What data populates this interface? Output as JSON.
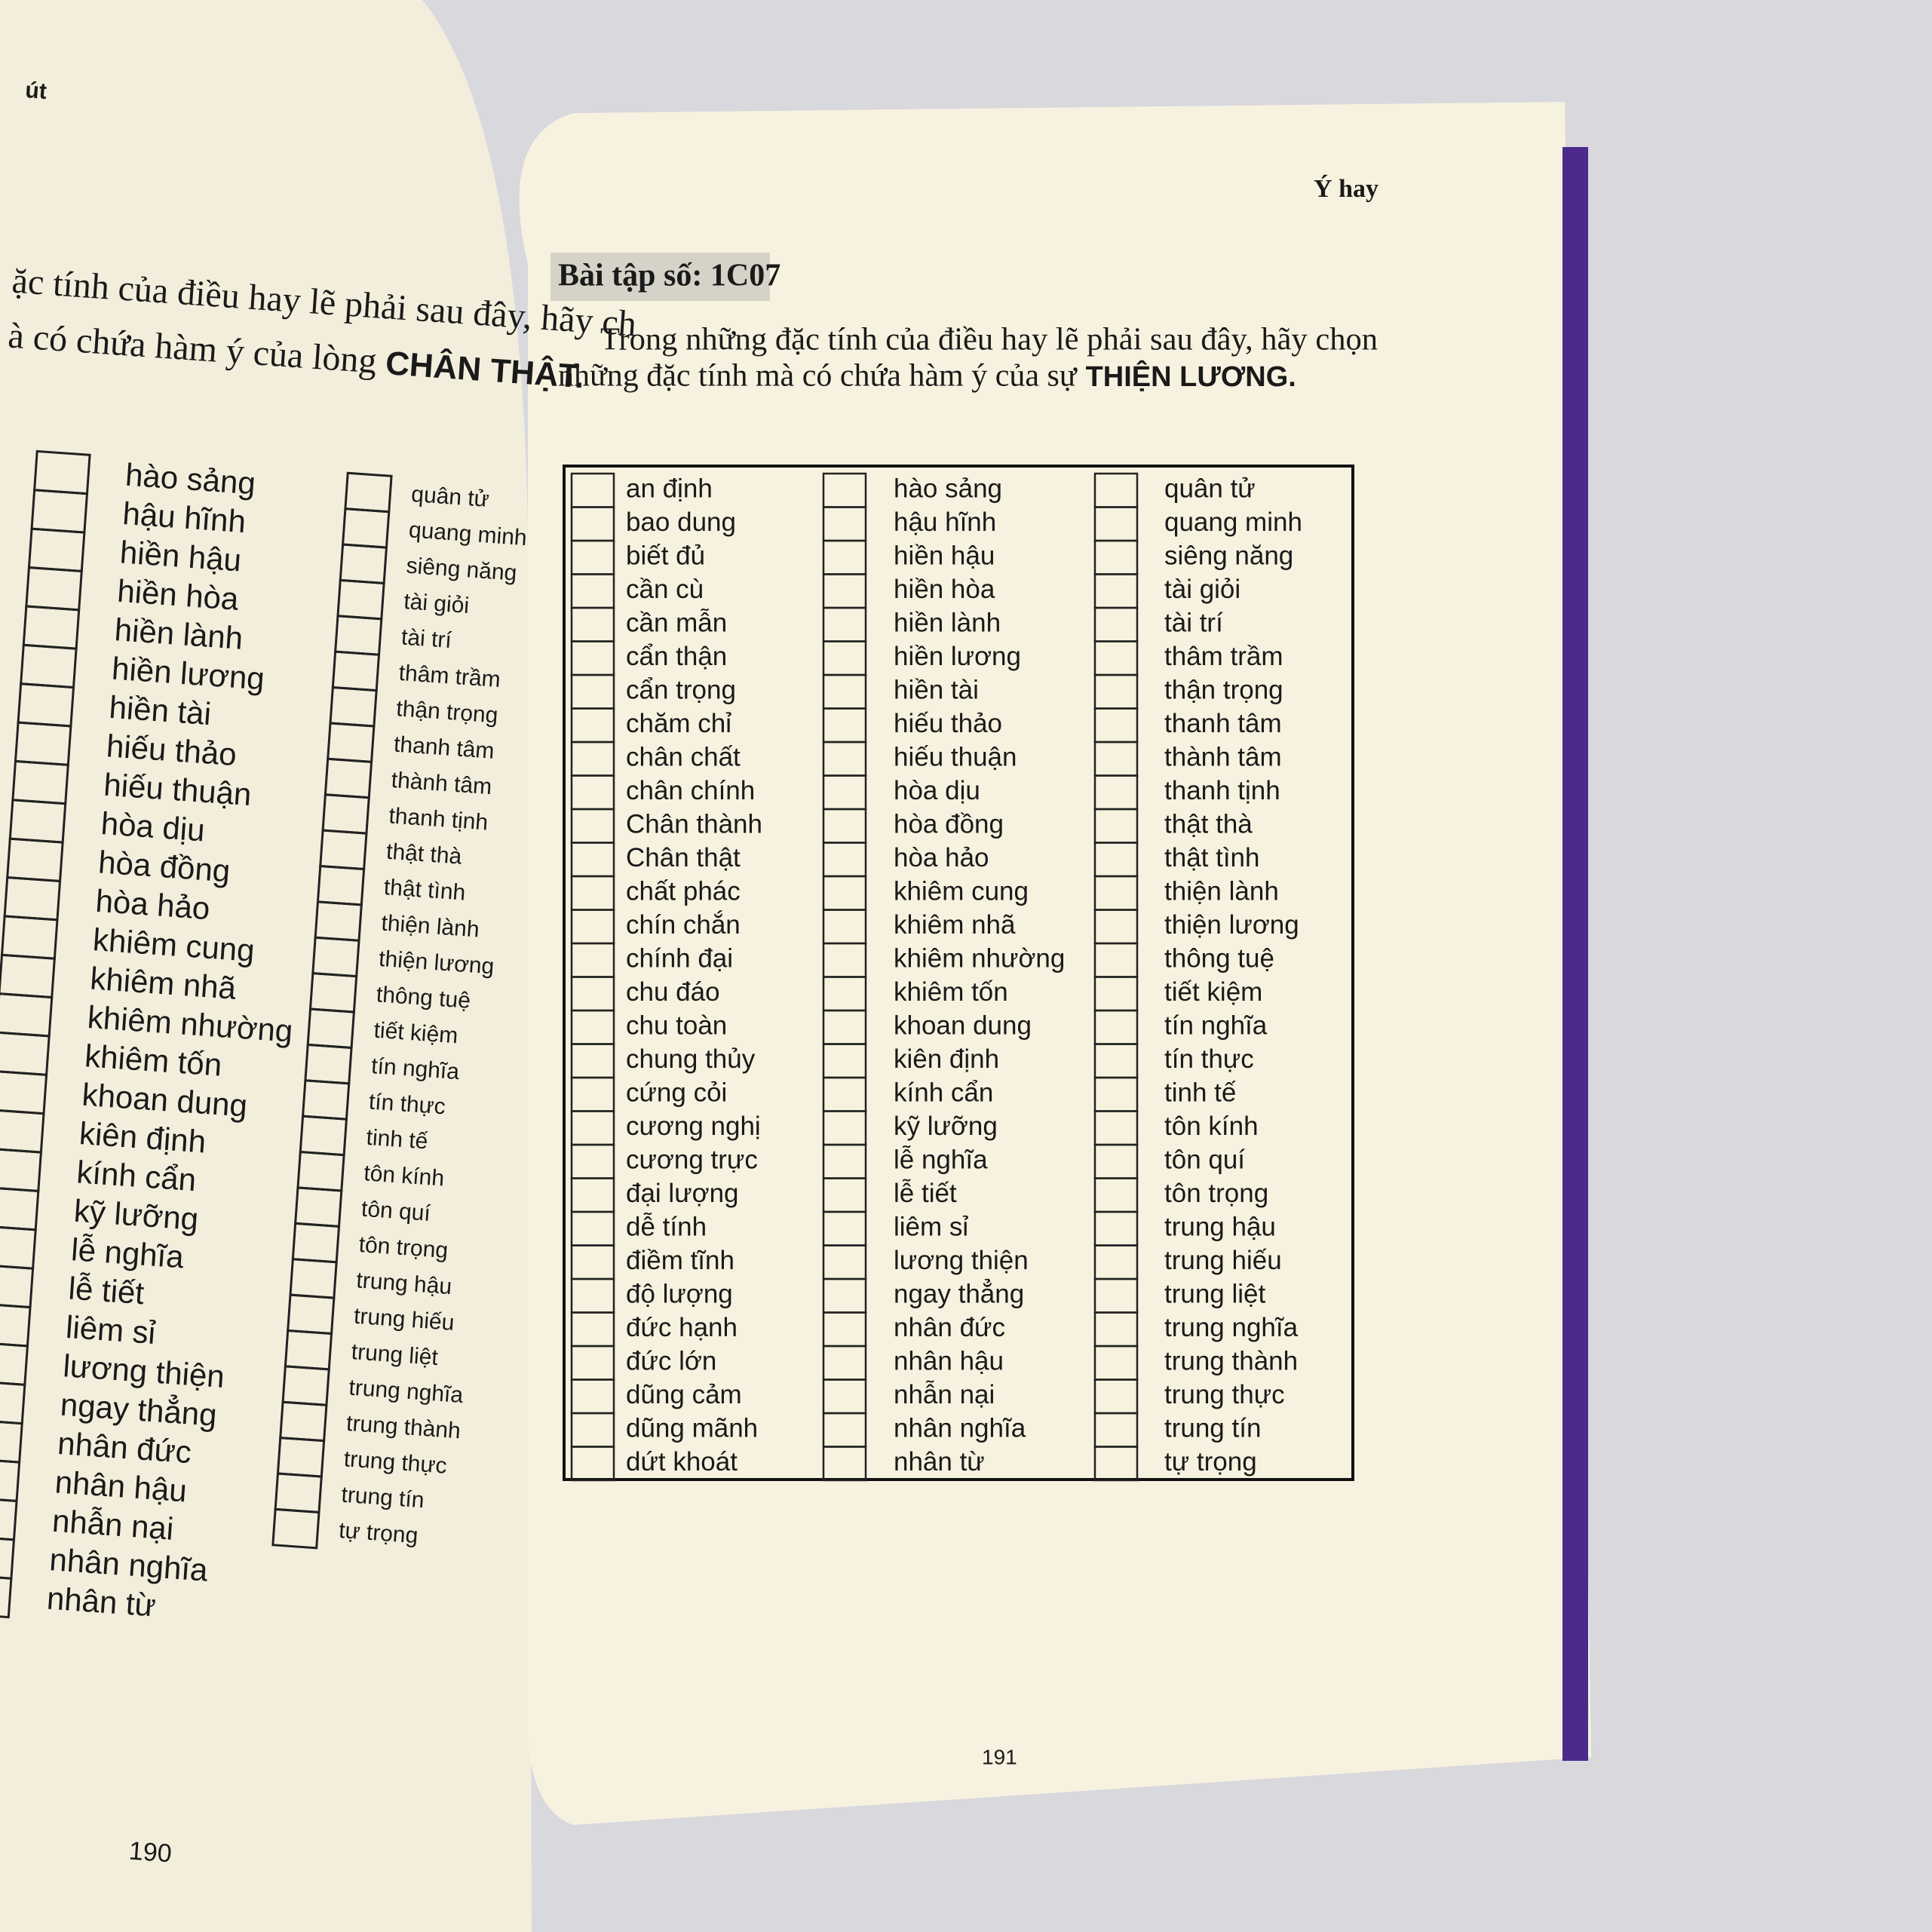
{
  "left_page": {
    "header": "út",
    "instruction_lines": [
      "ặc tính của điều hay lẽ phải sau đây, hãy ch",
      "à có chứa hàm ý của lòng"
    ],
    "emphasis": "CHÂN THẬT.",
    "columns": [
      [
        "hào sảng",
        "hậu hĩnh",
        "hiền hậu",
        "hiền hòa",
        "hiền lành",
        "hiền lương",
        "hiền tài",
        "hiếu thảo",
        "hiếu thuận",
        "hòa dịu",
        "hòa đồng",
        "hòa hảo",
        "khiêm cung",
        "khiêm nhã",
        "khiêm nhường",
        "khiêm tốn",
        "khoan dung",
        "kiên định",
        "kính cẩn",
        "kỹ lưỡng",
        "lễ nghĩa",
        "lễ tiết",
        "liêm sỉ",
        "lương thiện",
        "ngay thẳng",
        "nhân đức",
        "nhân hậu",
        "nhẫn nại",
        "nhân nghĩa",
        "nhân từ"
      ],
      [
        "quân tử",
        "quang minh",
        "siêng năng",
        "tài giỏi",
        "tài trí",
        "thâm trầm",
        "thận trọng",
        "thanh tâm",
        "thành tâm",
        "thanh tịnh",
        "thật thà",
        "thật tình",
        "thiện lành",
        "thiện lương",
        "thông tuệ",
        "tiết kiệm",
        "tín nghĩa",
        "tín thực",
        "tinh tế",
        "tôn kính",
        "tôn quí",
        "tôn trọng",
        "trung hậu",
        "trung hiếu",
        "trung liệt",
        "trung nghĩa",
        "trung thành",
        "trung thực",
        "trung tín",
        "tự trọng"
      ]
    ],
    "page_number": "190"
  },
  "right_page": {
    "header": "Ý hay",
    "exercise_title": "Bài tập số: 1C07",
    "instruction_lines": [
      "Trong những đặc tính của điều hay lẽ phải sau đây, hãy chọn",
      "những đặc tính mà có chứa hàm ý của sự"
    ],
    "emphasis": "THIỆN LƯƠNG.",
    "columns": [
      [
        "an định",
        "bao dung",
        "biết đủ",
        "cần cù",
        "cần mẫn",
        "cẩn thận",
        "cẩn trọng",
        "chăm chỉ",
        "chân chất",
        "chân chính",
        "Chân thành",
        "Chân thật",
        "chất phác",
        "chín  chắn",
        "chính đại",
        "chu đáo",
        "chu toàn",
        "chung thủy",
        "cứng cỏi",
        "cương nghị",
        "cương trực",
        "đại lượng",
        "dễ tính",
        "điềm tĩnh",
        "độ lượng",
        "đức hạnh",
        "đức lớn",
        "dũng cảm",
        "dũng mãnh",
        "dứt khoát"
      ],
      [
        "hào sảng",
        "hậu hĩnh",
        "hiền hậu",
        "hiền hòa",
        "hiền lành",
        "hiền lương",
        "hiền tài",
        "hiếu thảo",
        "hiếu thuận",
        "hòa dịu",
        "hòa đồng",
        "hòa hảo",
        "khiêm cung",
        "khiêm nhã",
        "khiêm nhường",
        "khiêm tốn",
        "khoan dung",
        "kiên định",
        "kính cẩn",
        "kỹ lưỡng",
        "lễ nghĩa",
        "lễ tiết",
        "liêm sỉ",
        "lương thiện",
        "ngay thẳng",
        "nhân đức",
        "nhân hậu",
        "nhẫn nại",
        "nhân nghĩa",
        "nhân từ"
      ],
      [
        "quân tử",
        "quang minh",
        "siêng năng",
        "tài giỏi",
        "tài trí",
        "thâm trầm",
        "thận trọng",
        "thanh tâm",
        "thành tâm",
        "thanh tịnh",
        "thật thà",
        "thật tình",
        "thiện lành",
        "thiện lương",
        "thông tuệ",
        "tiết kiệm",
        "tín nghĩa",
        "tín thực",
        "tinh tế",
        "tôn kính",
        "tôn quí",
        "tôn trọng",
        "trung hậu",
        "trung hiếu",
        "trung liệt",
        "trung nghĩa",
        "trung thành",
        "trung thực",
        "trung tín",
        "tự trọng"
      ]
    ],
    "page_number": "191"
  }
}
